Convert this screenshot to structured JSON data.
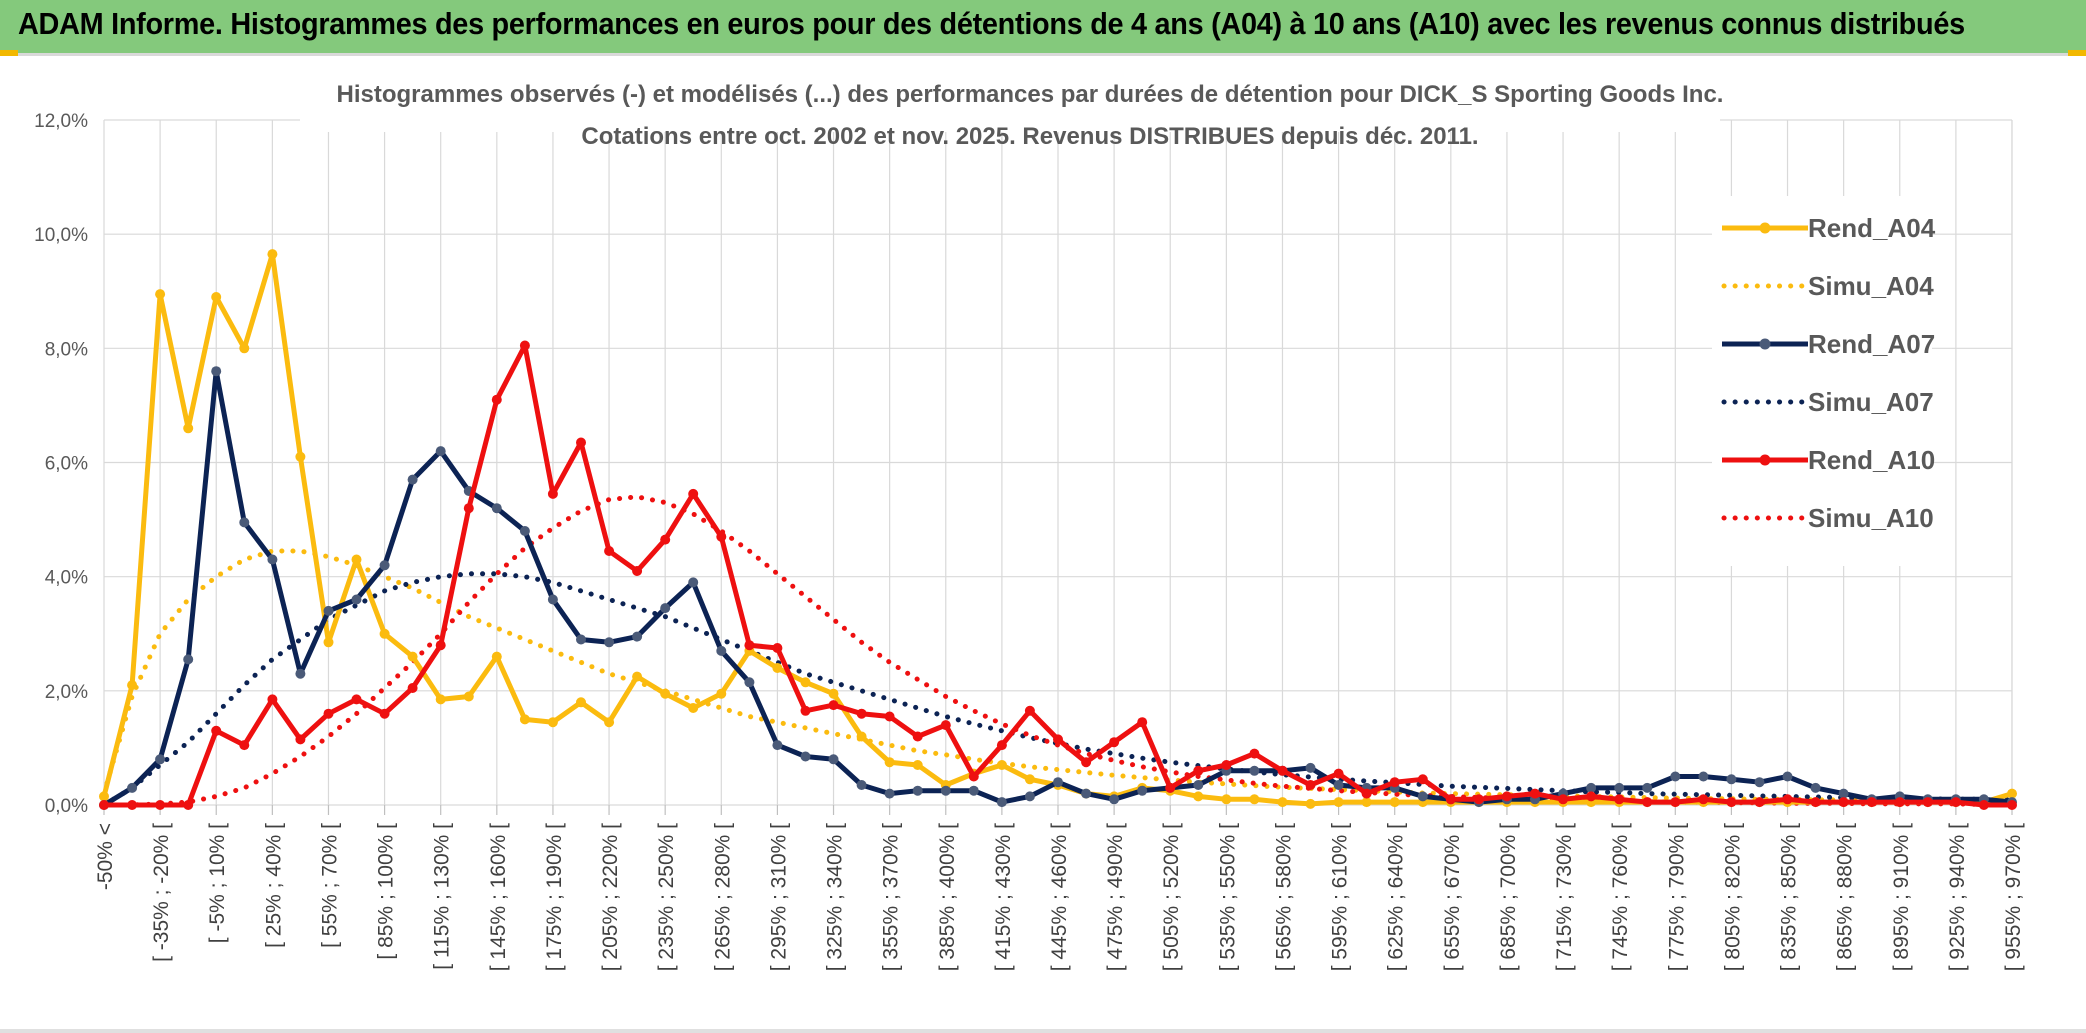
{
  "page_title": "ADAM Informe. Histogrammes des performances en euros pour des détentions de 4 ans (A04) à 10 ans (A10) avec les revenus connus distribués",
  "colors": {
    "header_bg": "#84c97c",
    "a04": "#fbbb0f",
    "a07": "#0c2354",
    "a10": "#ee1010",
    "grid": "#d9d9d9",
    "text": "#595959"
  },
  "chart_data": {
    "type": "line",
    "title_line1": "Histogrammes observés (-) et modélisés (...) des performances par durées de détention pour DICK_S Sporting Goods Inc.",
    "title_line2": "Cotations entre oct. 2002 et nov. 2025. Revenus DISTRIBUES depuis déc. 2011.",
    "ylim": [
      0,
      12
    ],
    "y_ticks": [
      "0,0%",
      "2,0%",
      "4,0%",
      "6,0%",
      "8,0%",
      "10,0%",
      "12,0%"
    ],
    "y_tick_values": [
      0,
      2,
      4,
      6,
      8,
      10,
      12
    ],
    "x_labels": [
      "-50% <",
      "[ -35% ; -20% [",
      "[ -5% ; 10% [",
      "[ 25% ; 40% [",
      "[ 55% ; 70% [",
      "[ 85% ; 100% [",
      "[ 115% ; 130% [",
      "[ 145% ; 160% [",
      "[ 175% ; 190% [",
      "[ 205% ; 220% [",
      "[ 235% ; 250% [",
      "[ 265% ; 280% [",
      "[ 295% ; 310% [",
      "[ 325% ; 340% [",
      "[ 355% ; 370% [",
      "[ 385% ; 400% [",
      "[ 415% ; 430% [",
      "[ 445% ; 460% [",
      "[ 475% ; 490% [",
      "[ 505% ; 520% [",
      "[ 535% ; 550% [",
      "[ 565% ; 580% [",
      "[ 595% ; 610% [",
      "[ 625% ; 640% [",
      "[ 655% ; 670% [",
      "[ 685% ; 700% [",
      "[ 715% ; 730% [",
      "[ 745% ; 760% [",
      "[ 775% ; 790% [",
      "[ 805% ; 820% [",
      "[ 835% ; 850% [",
      "[ 865% ; 880% [",
      "[ 895% ; 910% [",
      "[ 925% ; 940% [",
      "[ 955% ; 970% ["
    ],
    "label_every": 2,
    "n_points": 69,
    "legend_position": "right",
    "series": [
      {
        "name": "Rend_A04",
        "style": "solid",
        "color": "#fbbb0f",
        "values": [
          0.15,
          2.1,
          8.95,
          6.6,
          8.9,
          8.0,
          9.65,
          6.1,
          2.85,
          4.3,
          3.0,
          2.6,
          1.85,
          1.9,
          2.6,
          1.5,
          1.45,
          1.8,
          1.45,
          2.25,
          1.95,
          1.7,
          1.95,
          2.7,
          2.4,
          2.15,
          1.95,
          1.2,
          0.75,
          0.7,
          0.35,
          0.55,
          0.7,
          0.45,
          0.35,
          0.2,
          0.15,
          0.3,
          0.25,
          0.15,
          0.1,
          0.1,
          0.05,
          0.02,
          0.05,
          0.05,
          0.05,
          0.05,
          0.05,
          0.05,
          0.05,
          0.05,
          0.05,
          0.05,
          0.05,
          0.05,
          0.05,
          0.05,
          0.05,
          0.05,
          0.05,
          0.05,
          0.05,
          0.05,
          0.05,
          0.05,
          0.05,
          0.05,
          0.2
        ]
      },
      {
        "name": "Simu_A04",
        "style": "dotted",
        "color": "#fbbb0f",
        "values": [
          0.2,
          1.9,
          3.0,
          3.6,
          4.0,
          4.3,
          4.45,
          4.45,
          4.35,
          4.2,
          4.0,
          3.8,
          3.55,
          3.3,
          3.1,
          2.9,
          2.7,
          2.5,
          2.3,
          2.15,
          2.0,
          1.85,
          1.7,
          1.55,
          1.45,
          1.35,
          1.25,
          1.15,
          1.05,
          0.95,
          0.88,
          0.8,
          0.73,
          0.67,
          0.62,
          0.57,
          0.52,
          0.48,
          0.44,
          0.4,
          0.37,
          0.34,
          0.31,
          0.29,
          0.27,
          0.25,
          0.23,
          0.21,
          0.2,
          0.19,
          0.18,
          0.17,
          0.16,
          0.15,
          0.14,
          0.13,
          0.12,
          0.11,
          0.11,
          0.1,
          0.1,
          0.09,
          0.09,
          0.08,
          0.08,
          0.08,
          0.07,
          0.07,
          0.07
        ]
      },
      {
        "name": "Rend_A07",
        "style": "solid",
        "color": "#0c2354",
        "values": [
          0.0,
          0.3,
          0.8,
          2.55,
          7.6,
          4.95,
          4.3,
          2.3,
          3.4,
          3.6,
          4.2,
          5.7,
          6.2,
          5.5,
          5.2,
          4.8,
          3.6,
          2.9,
          2.85,
          2.95,
          3.45,
          3.9,
          2.7,
          2.15,
          1.05,
          0.85,
          0.8,
          0.35,
          0.2,
          0.25,
          0.25,
          0.25,
          0.05,
          0.15,
          0.4,
          0.2,
          0.1,
          0.25,
          0.3,
          0.35,
          0.6,
          0.6,
          0.6,
          0.65,
          0.35,
          0.3,
          0.3,
          0.15,
          0.1,
          0.05,
          0.1,
          0.1,
          0.2,
          0.3,
          0.3,
          0.3,
          0.5,
          0.5,
          0.45,
          0.4,
          0.5,
          0.3,
          0.2,
          0.1,
          0.15,
          0.1,
          0.1,
          0.1,
          0.05
        ]
      },
      {
        "name": "Simu_A07",
        "style": "dotted",
        "color": "#0c2354",
        "values": [
          0.0,
          0.3,
          0.7,
          1.1,
          1.6,
          2.1,
          2.55,
          2.9,
          3.25,
          3.5,
          3.75,
          3.9,
          4.0,
          4.05,
          4.05,
          4.0,
          3.9,
          3.75,
          3.6,
          3.45,
          3.3,
          3.1,
          2.9,
          2.7,
          2.5,
          2.3,
          2.15,
          2.0,
          1.85,
          1.7,
          1.55,
          1.42,
          1.3,
          1.18,
          1.08,
          0.98,
          0.9,
          0.82,
          0.75,
          0.69,
          0.63,
          0.58,
          0.53,
          0.49,
          0.45,
          0.42,
          0.39,
          0.36,
          0.33,
          0.31,
          0.29,
          0.27,
          0.25,
          0.23,
          0.22,
          0.2,
          0.19,
          0.18,
          0.17,
          0.16,
          0.15,
          0.14,
          0.13,
          0.12,
          0.12,
          0.11,
          0.1,
          0.1,
          0.09
        ]
      },
      {
        "name": "Rend_A10",
        "style": "solid",
        "color": "#ee1010",
        "values": [
          0.0,
          0.0,
          0.0,
          0.0,
          1.3,
          1.05,
          1.85,
          1.15,
          1.6,
          1.85,
          1.6,
          2.05,
          2.8,
          5.2,
          7.1,
          8.05,
          5.45,
          6.35,
          4.45,
          4.1,
          4.65,
          5.45,
          4.7,
          2.8,
          2.75,
          1.65,
          1.75,
          1.6,
          1.55,
          1.2,
          1.4,
          0.5,
          1.05,
          1.65,
          1.15,
          0.75,
          1.1,
          1.45,
          0.3,
          0.6,
          0.7,
          0.9,
          0.6,
          0.35,
          0.55,
          0.2,
          0.4,
          0.45,
          0.1,
          0.1,
          0.15,
          0.2,
          0.1,
          0.15,
          0.1,
          0.05,
          0.05,
          0.1,
          0.05,
          0.05,
          0.1,
          0.05,
          0.05,
          0.05,
          0.05,
          0.05,
          0.05,
          0.0,
          0.0
        ]
      },
      {
        "name": "Simu_A10",
        "style": "dotted",
        "color": "#ee1010",
        "values": [
          0.0,
          0.0,
          0.02,
          0.05,
          0.15,
          0.3,
          0.55,
          0.85,
          1.2,
          1.6,
          2.05,
          2.5,
          3.0,
          3.55,
          4.05,
          4.5,
          4.85,
          5.15,
          5.35,
          5.4,
          5.3,
          5.1,
          4.8,
          4.45,
          4.05,
          3.65,
          3.25,
          2.85,
          2.5,
          2.2,
          1.9,
          1.65,
          1.42,
          1.22,
          1.05,
          0.9,
          0.78,
          0.67,
          0.58,
          0.5,
          0.44,
          0.38,
          0.33,
          0.29,
          0.25,
          0.22,
          0.19,
          0.17,
          0.15,
          0.13,
          0.12,
          0.1,
          0.09,
          0.08,
          0.07,
          0.06,
          0.05,
          0.05,
          0.04,
          0.04,
          0.03,
          0.03,
          0.03,
          0.02,
          0.02,
          0.02,
          0.02,
          0.01,
          0.01
        ]
      }
    ]
  }
}
